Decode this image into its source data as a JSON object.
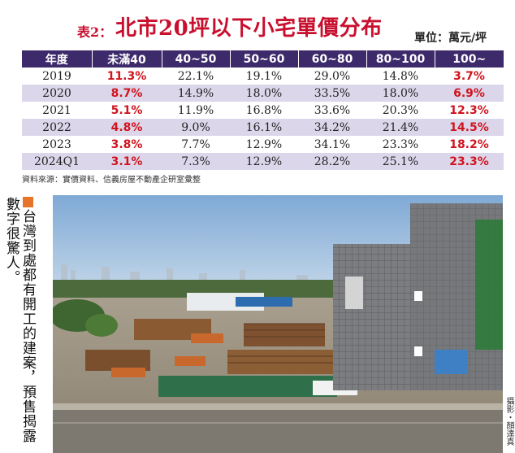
{
  "title": {
    "prefix": "表2：",
    "main": "北市20坪以下小宅單價分布",
    "unit": "單位：萬元/坪"
  },
  "table": {
    "headers": [
      "年度",
      "未滿40",
      "40~50",
      "50~60",
      "60~80",
      "80~100",
      "100~"
    ],
    "rows": [
      [
        "2019",
        "11.3%",
        "22.1%",
        "19.1%",
        "29.0%",
        "14.8%",
        "3.7%"
      ],
      [
        "2020",
        "8.7%",
        "14.9%",
        "18.0%",
        "33.5%",
        "18.0%",
        "6.9%"
      ],
      [
        "2021",
        "5.1%",
        "11.9%",
        "16.8%",
        "33.6%",
        "20.3%",
        "12.3%"
      ],
      [
        "2022",
        "4.8%",
        "9.0%",
        "16.1%",
        "34.2%",
        "21.4%",
        "14.5%"
      ],
      [
        "2023",
        "3.8%",
        "7.7%",
        "12.9%",
        "34.1%",
        "23.3%",
        "18.2%"
      ],
      [
        "2024Q1",
        "3.1%",
        "7.3%",
        "12.9%",
        "28.2%",
        "25.1%",
        "23.3%"
      ]
    ],
    "highlight_color": "#d0141f",
    "header_color": "#3d2a6b"
  },
  "source": "資料來源：實價資料、信義房屋不動產企研室彙整",
  "caption": "台灣到處都有開工的建案，預售揭露數字很驚人。",
  "credit": "攝影・顏達真"
}
